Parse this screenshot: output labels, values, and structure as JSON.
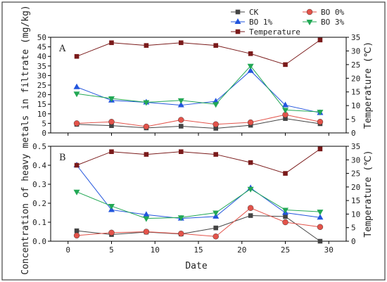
{
  "chart_data": [
    {
      "type": "line",
      "panel_label": "A",
      "xlabel": "",
      "ylabel": "Concentration of heavy metals in filtrate (mg/kg)",
      "y2label": "Temperature (℃)",
      "x": [
        1,
        5,
        9,
        13,
        17,
        21,
        25,
        29
      ],
      "xlim": [
        -2,
        32
      ],
      "xticks": [],
      "ylim": [
        0,
        50
      ],
      "yticks": [
        0,
        5,
        10,
        15,
        20,
        25,
        30,
        35,
        40,
        45,
        50
      ],
      "y2lim": [
        0,
        35
      ],
      "y2ticks": [
        0,
        5,
        10,
        15,
        20,
        25,
        30,
        35
      ],
      "series": [
        {
          "name": "CK",
          "axis": "left",
          "color": "#444444",
          "marker": "square",
          "values": [
            4.5,
            3.8,
            2.6,
            3.5,
            2.4,
            4.0,
            7.5,
            4.8
          ]
        },
        {
          "name": "BO 0%",
          "axis": "left",
          "color": "#e3534a",
          "marker": "circle",
          "values": [
            5.0,
            5.8,
            3.3,
            6.8,
            4.5,
            5.5,
            9.5,
            5.8
          ]
        },
        {
          "name": "BO 1%",
          "axis": "left",
          "color": "#2255dd",
          "marker": "triangle-up",
          "values": [
            24.0,
            17.0,
            16.0,
            14.5,
            16.5,
            32.5,
            14.5,
            10.5
          ]
        },
        {
          "name": "BO 3%",
          "axis": "left",
          "color": "#22a855",
          "marker": "triangle-down",
          "values": [
            20.5,
            18.0,
            16.0,
            17.0,
            15.0,
            35.0,
            12.0,
            11.0
          ]
        },
        {
          "name": "Temperature",
          "axis": "right",
          "color": "#7a1a1a",
          "marker": "square",
          "values": [
            28,
            33,
            32,
            33,
            32,
            29,
            25,
            34
          ]
        }
      ]
    },
    {
      "type": "line",
      "panel_label": "B",
      "xlabel": "Date",
      "ylabel": "",
      "y2label": "Temperature (℃)",
      "x": [
        1,
        5,
        9,
        13,
        17,
        21,
        25,
        29
      ],
      "xlim": [
        -2,
        32
      ],
      "xticks": [
        0,
        5,
        10,
        15,
        20,
        25,
        30
      ],
      "ylim": [
        0,
        0.5
      ],
      "yticks": [
        0.0,
        0.1,
        0.2,
        0.3,
        0.4,
        0.5
      ],
      "y2lim": [
        0,
        35
      ],
      "y2ticks": [
        0,
        5,
        10,
        15,
        20,
        25,
        30,
        35
      ],
      "series": [
        {
          "name": "CK",
          "axis": "left",
          "color": "#444444",
          "marker": "square",
          "values": [
            0.055,
            0.035,
            0.048,
            0.038,
            0.07,
            0.135,
            0.13,
            0.0
          ]
        },
        {
          "name": "BO 0%",
          "axis": "left",
          "color": "#e3534a",
          "marker": "circle",
          "values": [
            0.03,
            0.045,
            0.05,
            0.04,
            0.025,
            0.175,
            0.1,
            0.075
          ]
        },
        {
          "name": "BO 1%",
          "axis": "left",
          "color": "#2255dd",
          "marker": "triangle-up",
          "values": [
            0.4,
            0.165,
            0.14,
            0.12,
            0.13,
            0.28,
            0.15,
            0.125
          ]
        },
        {
          "name": "BO 3%",
          "axis": "left",
          "color": "#22a855",
          "marker": "triangle-down",
          "values": [
            0.26,
            0.185,
            0.12,
            0.125,
            0.15,
            0.275,
            0.165,
            0.155
          ]
        },
        {
          "name": "Temperature",
          "axis": "right",
          "color": "#7a1a1a",
          "marker": "square",
          "values": [
            28,
            33,
            32,
            33,
            32,
            29,
            25,
            34
          ]
        }
      ]
    }
  ],
  "legend": {
    "placement": "top-right",
    "items": [
      {
        "name": "CK",
        "color": "#444444",
        "marker": "square"
      },
      {
        "name": "BO 0%",
        "color": "#e3534a",
        "marker": "circle"
      },
      {
        "name": "BO 1%",
        "color": "#2255dd",
        "marker": "triangle-up"
      },
      {
        "name": "BO 3%",
        "color": "#22a855",
        "marker": "triangle-down"
      },
      {
        "name": "Temperature",
        "color": "#7a1a1a",
        "marker": "square"
      }
    ]
  }
}
